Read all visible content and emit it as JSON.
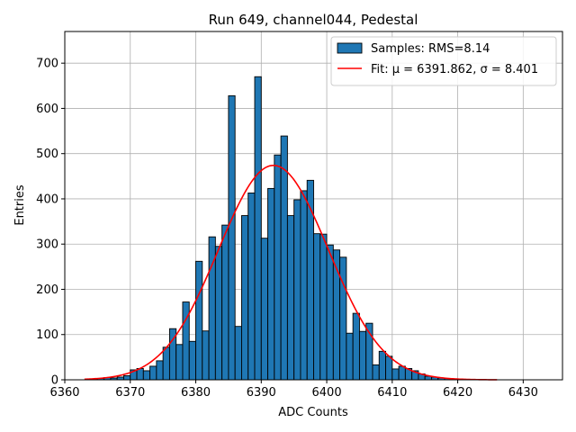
{
  "chart_data": {
    "type": "bar",
    "title": "Run 649, channel044, Pedestal",
    "xlabel": "ADC Counts",
    "ylabel": "Entries",
    "xlim": [
      6360,
      6436
    ],
    "ylim": [
      0,
      770
    ],
    "xticks": [
      6360,
      6370,
      6380,
      6390,
      6400,
      6410,
      6420,
      6430
    ],
    "yticks": [
      0,
      100,
      200,
      300,
      400,
      500,
      600,
      700
    ],
    "grid": true,
    "legend_position": "top-right",
    "colors": {
      "bars": "#1f77b4",
      "bar_edge": "#000000",
      "fit": "#ff0000"
    },
    "histogram": {
      "name": "Samples: RMS=8.14",
      "bin_width": 1,
      "bins": [
        [
          6364,
          2
        ],
        [
          6365,
          3
        ],
        [
          6366,
          5
        ],
        [
          6367,
          4
        ],
        [
          6368,
          6
        ],
        [
          6369,
          9
        ],
        [
          6370,
          22
        ],
        [
          6371,
          25
        ],
        [
          6372,
          20
        ],
        [
          6373,
          30
        ],
        [
          6374,
          42
        ],
        [
          6375,
          72
        ],
        [
          6376,
          113
        ],
        [
          6377,
          78
        ],
        [
          6378,
          172
        ],
        [
          6379,
          85
        ],
        [
          6380,
          262
        ],
        [
          6381,
          108
        ],
        [
          6382,
          316
        ],
        [
          6383,
          295
        ],
        [
          6384,
          342
        ],
        [
          6385,
          628
        ],
        [
          6386,
          118
        ],
        [
          6387,
          363
        ],
        [
          6388,
          413
        ],
        [
          6389,
          670
        ],
        [
          6390,
          313
        ],
        [
          6391,
          423
        ],
        [
          6392,
          497
        ],
        [
          6393,
          539
        ],
        [
          6394,
          363
        ],
        [
          6395,
          398
        ],
        [
          6396,
          418
        ],
        [
          6397,
          441
        ],
        [
          6398,
          323
        ],
        [
          6399,
          322
        ],
        [
          6400,
          298
        ],
        [
          6401,
          287
        ],
        [
          6402,
          271
        ],
        [
          6403,
          103
        ],
        [
          6404,
          147
        ],
        [
          6405,
          107
        ],
        [
          6406,
          125
        ],
        [
          6407,
          33
        ],
        [
          6408,
          63
        ],
        [
          6409,
          52
        ],
        [
          6410,
          24
        ],
        [
          6411,
          30
        ],
        [
          6412,
          25
        ],
        [
          6413,
          20
        ],
        [
          6414,
          13
        ],
        [
          6415,
          8
        ],
        [
          6416,
          6
        ],
        [
          6417,
          4
        ],
        [
          6418,
          3
        ],
        [
          6419,
          2
        ],
        [
          6420,
          1
        ],
        [
          6421,
          1
        ],
        [
          6422,
          1
        ]
      ]
    },
    "fit": {
      "name": "Fit: μ = 6391.862, σ = 8.401",
      "mu": 6391.862,
      "sigma": 8.401,
      "amplitude": 474,
      "x_range": [
        6363,
        6426
      ]
    }
  }
}
